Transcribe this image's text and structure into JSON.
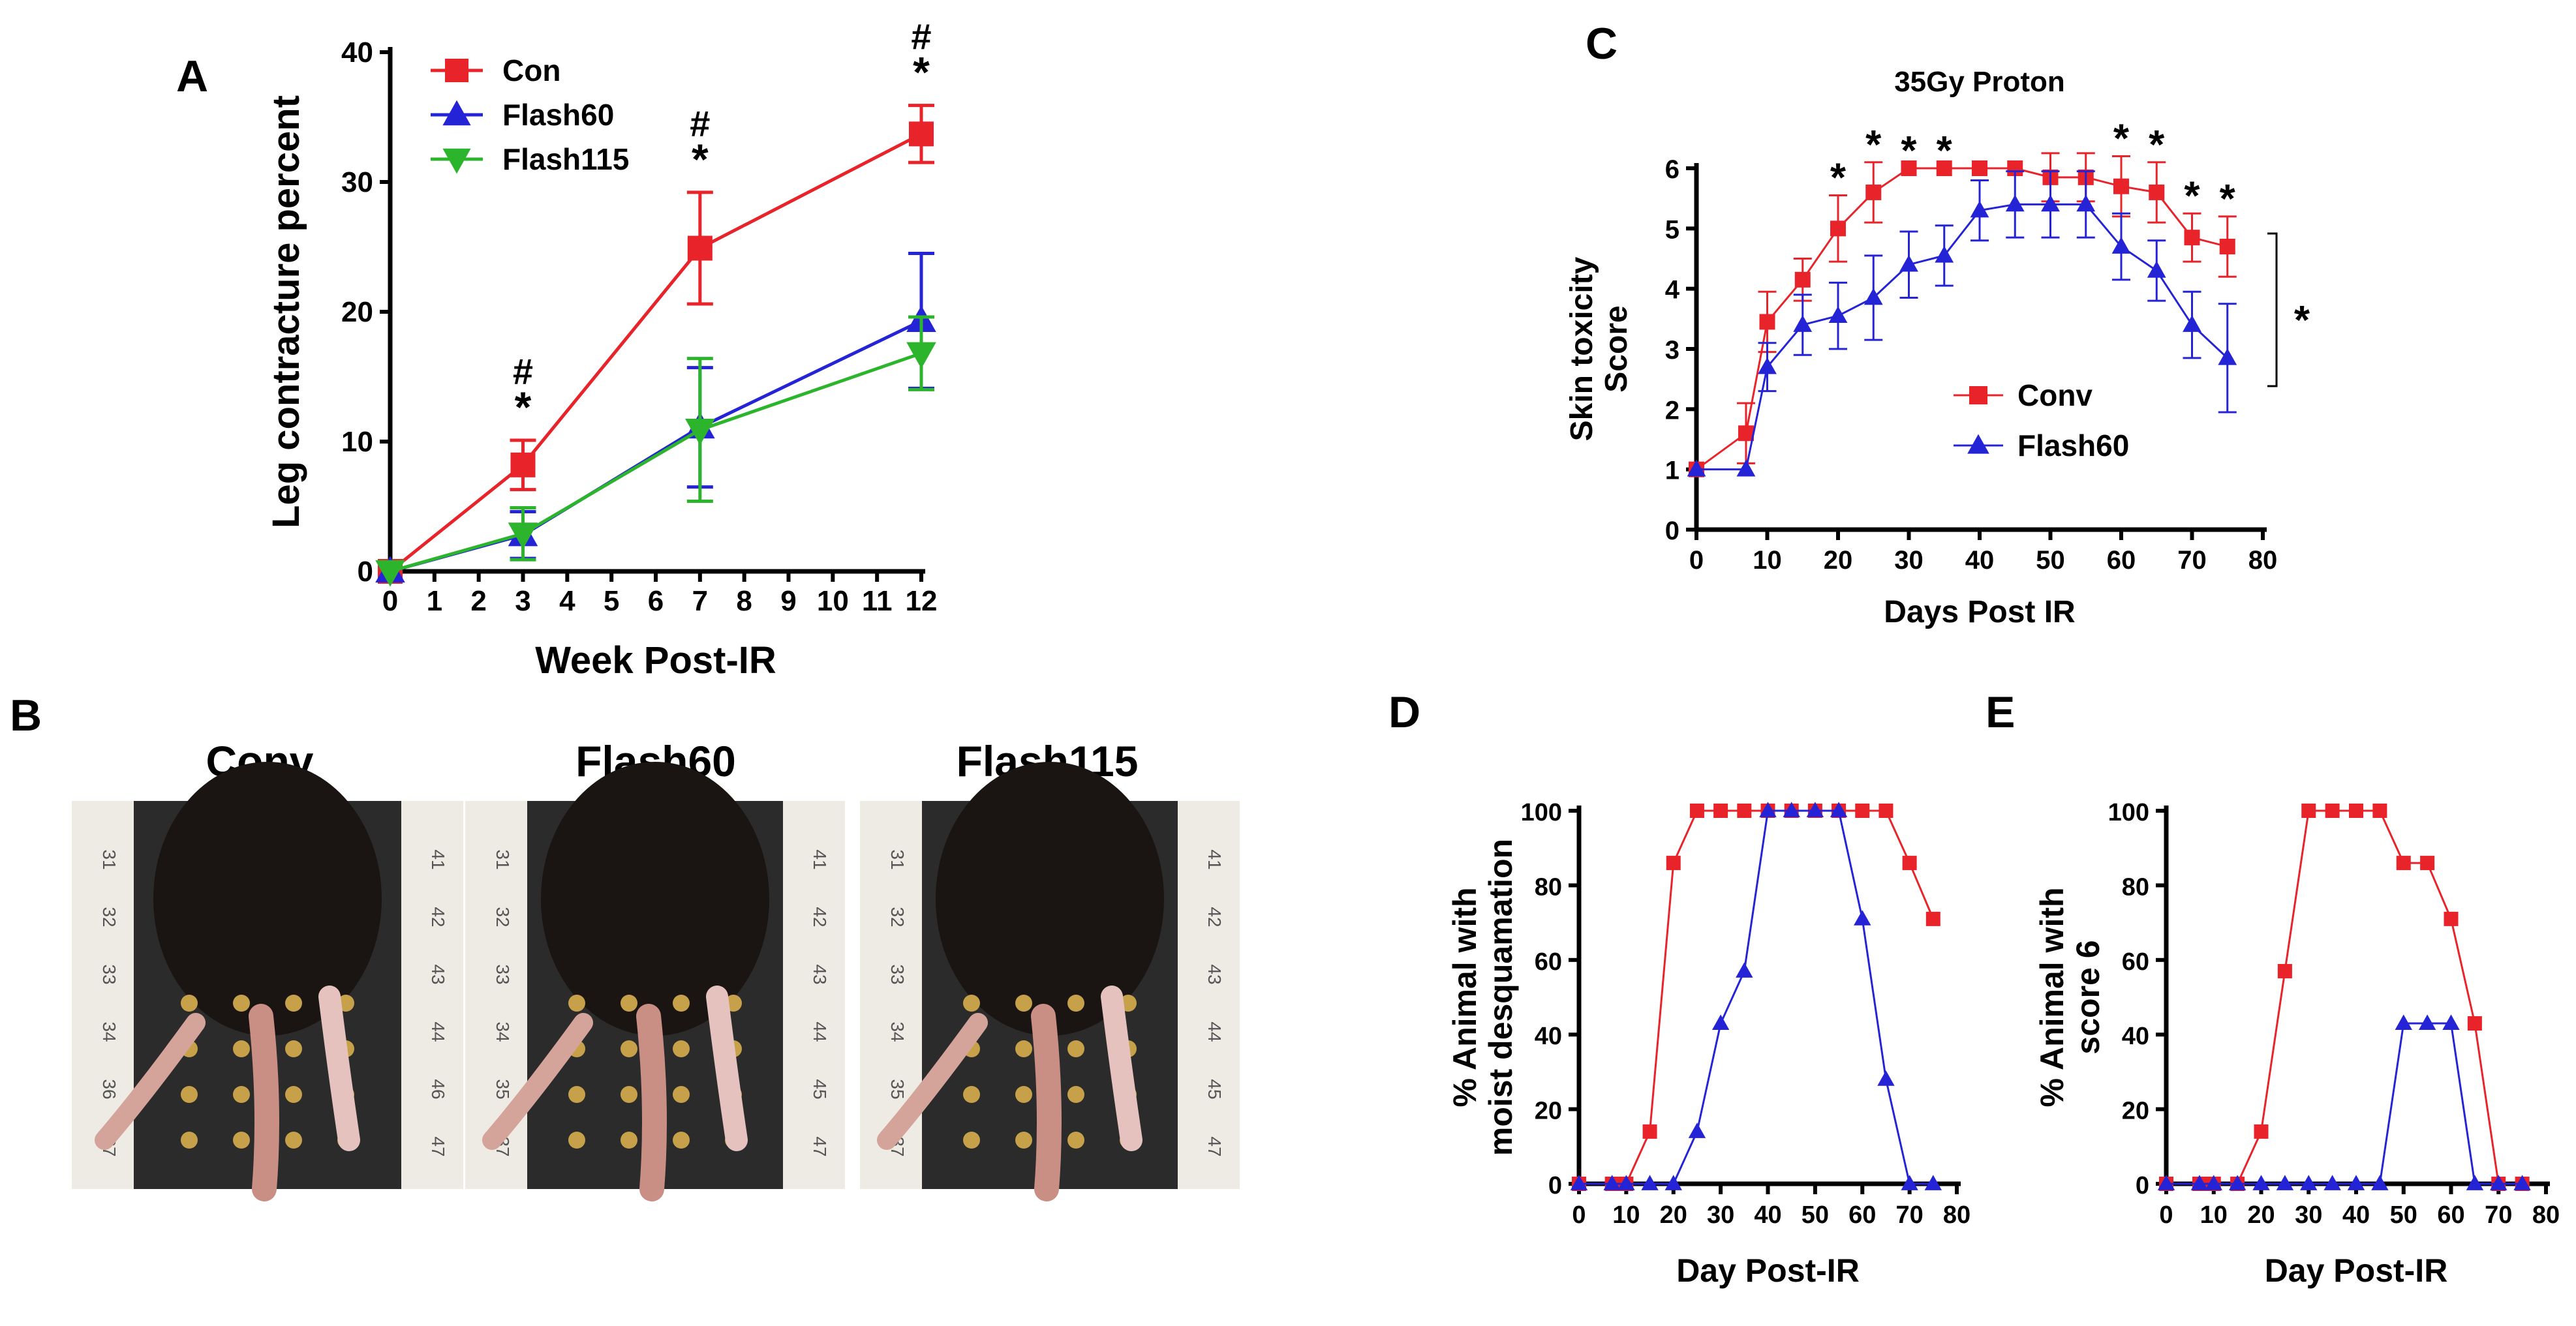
{
  "colors": {
    "conv": "#e8232a",
    "flash60": "#2424d6",
    "flash115": "#2cb52c",
    "axis": "#000000"
  },
  "chart_data": [
    {
      "panel": "A",
      "type": "line",
      "title": "",
      "xlabel": "Week Post-IR",
      "ylabel": "Leg contracture percent",
      "xlim": [
        0,
        12
      ],
      "ylim": [
        0,
        40
      ],
      "xticks": [
        "0",
        "1",
        "2",
        "3",
        "4",
        "5",
        "6",
        "7",
        "8",
        "9",
        "10",
        "11",
        "12"
      ],
      "yticks": [
        "0",
        "10",
        "20",
        "30",
        "40"
      ],
      "legend_position": "top-left",
      "series": [
        {
          "name": "Con",
          "marker": "square",
          "color": "#e8232a",
          "x": [
            0,
            3,
            7,
            12
          ],
          "y": [
            0,
            8.2,
            24.9,
            33.7
          ],
          "err": [
            0,
            1.9,
            4.3,
            2.2
          ]
        },
        {
          "name": "Flash60",
          "marker": "triangle-up",
          "color": "#2424d6",
          "x": [
            0,
            3,
            7,
            12
          ],
          "y": [
            0,
            2.8,
            11.1,
            19.3
          ],
          "err": [
            0,
            1.8,
            4.6,
            5.2
          ]
        },
        {
          "name": "Flash115",
          "marker": "triangle-down",
          "color": "#2cb52c",
          "x": [
            0,
            3,
            7,
            12
          ],
          "y": [
            0,
            2.9,
            10.9,
            16.8
          ],
          "err": [
            0,
            2.0,
            5.5,
            2.8
          ]
        }
      ],
      "annotations": [
        {
          "x": 3,
          "labels": [
            "#",
            "*"
          ]
        },
        {
          "x": 7,
          "labels": [
            "#",
            "*"
          ]
        },
        {
          "x": 12,
          "labels": [
            "#",
            "*"
          ]
        }
      ]
    },
    {
      "panel": "C",
      "type": "line",
      "title": "35Gy Proton",
      "xlabel": "Days Post IR",
      "ylabel": "Skin toxicity Score",
      "xlim": [
        0,
        80
      ],
      "ylim": [
        0,
        6
      ],
      "xticks": [
        "0",
        "10",
        "20",
        "30",
        "40",
        "50",
        "60",
        "70",
        "80"
      ],
      "yticks": [
        "0",
        "1",
        "2",
        "3",
        "4",
        "5",
        "6"
      ],
      "legend_position": "center-right",
      "series": [
        {
          "name": "Conv",
          "marker": "square",
          "color": "#e8232a",
          "x": [
            0,
            7,
            10,
            15,
            20,
            25,
            30,
            35,
            40,
            45,
            50,
            55,
            60,
            65,
            70,
            75
          ],
          "y": [
            1,
            1.6,
            3.45,
            4.15,
            5.0,
            5.6,
            6,
            6,
            6,
            6,
            5.85,
            5.85,
            5.7,
            5.6,
            4.85,
            4.7
          ],
          "err": [
            0,
            0.5,
            0.5,
            0.35,
            0.55,
            0.5,
            0,
            0,
            0,
            0,
            0.4,
            0.4,
            0.5,
            0.5,
            0.4,
            0.5
          ]
        },
        {
          "name": "Flash60",
          "marker": "triangle-up",
          "color": "#2424d6",
          "x": [
            0,
            7,
            10,
            15,
            20,
            25,
            30,
            35,
            40,
            45,
            50,
            55,
            60,
            65,
            70,
            75
          ],
          "y": [
            1,
            1,
            2.7,
            3.4,
            3.55,
            3.85,
            4.4,
            4.55,
            5.3,
            5.4,
            5.4,
            5.4,
            4.7,
            4.3,
            3.4,
            2.85
          ],
          "err": [
            0,
            0,
            0.4,
            0.5,
            0.55,
            0.7,
            0.55,
            0.5,
            0.5,
            0.55,
            0.55,
            0.55,
            0.55,
            0.5,
            0.55,
            0.9
          ]
        }
      ],
      "annotations": [
        {
          "x": 20,
          "labels": [
            "*"
          ]
        },
        {
          "x": 25,
          "labels": [
            "*"
          ]
        },
        {
          "x": 30,
          "labels": [
            "*"
          ]
        },
        {
          "x": 35,
          "labels": [
            "*"
          ]
        },
        {
          "x": 60,
          "labels": [
            "*"
          ]
        },
        {
          "x": 65,
          "labels": [
            "*"
          ]
        },
        {
          "x": 70,
          "labels": [
            "*"
          ]
        },
        {
          "x": 75,
          "labels": [
            "*"
          ]
        },
        {
          "bracket": "right",
          "labels": [
            "*"
          ]
        }
      ]
    },
    {
      "panel": "D",
      "type": "line",
      "title": "",
      "xlabel": "Day Post-IR",
      "ylabel": "% Animal with moist desquamation",
      "xlim": [
        0,
        80
      ],
      "ylim": [
        0,
        100
      ],
      "xticks": [
        "0",
        "10",
        "20",
        "30",
        "40",
        "50",
        "60",
        "70",
        "80"
      ],
      "yticks": [
        "0",
        "20",
        "40",
        "60",
        "80",
        "100"
      ],
      "series": [
        {
          "name": "Conv",
          "marker": "square",
          "color": "#e8232a",
          "x": [
            0,
            7,
            8,
            10,
            15,
            20,
            25,
            30,
            35,
            40,
            45,
            50,
            55,
            60,
            65,
            70,
            75
          ],
          "y": [
            0,
            0,
            0,
            0,
            14,
            86,
            100,
            100,
            100,
            100,
            100,
            100,
            100,
            100,
            100,
            86,
            71
          ]
        },
        {
          "name": "Flash60",
          "marker": "triangle-up",
          "color": "#2424d6",
          "x": [
            0,
            7,
            10,
            15,
            20,
            25,
            30,
            35,
            40,
            45,
            50,
            55,
            60,
            65,
            70,
            75
          ],
          "y": [
            0,
            0,
            0,
            0,
            0,
            14,
            43,
            57,
            100,
            100,
            100,
            100,
            71,
            28,
            0,
            0
          ]
        }
      ]
    },
    {
      "panel": "E",
      "type": "line",
      "title": "",
      "xlabel": "Day Post-IR",
      "ylabel": "% Animal with score 6",
      "xlim": [
        0,
        80
      ],
      "ylim": [
        0,
        100
      ],
      "xticks": [
        "0",
        "10",
        "20",
        "30",
        "40",
        "50",
        "60",
        "70",
        "80"
      ],
      "yticks": [
        "0",
        "20",
        "40",
        "60",
        "80",
        "100"
      ],
      "series": [
        {
          "name": "Conv",
          "marker": "square",
          "color": "#e8232a",
          "x": [
            0,
            7,
            8,
            10,
            15,
            20,
            25,
            30,
            35,
            40,
            45,
            50,
            55,
            60,
            65,
            70,
            75
          ],
          "y": [
            0,
            0,
            0,
            0,
            0,
            14,
            57,
            100,
            100,
            100,
            100,
            86,
            86,
            71,
            43,
            0,
            0
          ]
        },
        {
          "name": "Flash60",
          "marker": "triangle-up",
          "color": "#2424d6",
          "x": [
            0,
            7,
            10,
            15,
            20,
            25,
            30,
            35,
            40,
            45,
            50,
            55,
            60,
            65,
            70,
            75
          ],
          "y": [
            0,
            0,
            0,
            0,
            0,
            0,
            0,
            0,
            0,
            0,
            43,
            43,
            43,
            0,
            0,
            0
          ]
        }
      ]
    }
  ],
  "photos": {
    "panel": "B",
    "labels": [
      "Conv",
      "Flash60",
      "Flash115"
    ],
    "ruler_left": [
      "31",
      "32",
      "33",
      "34",
      "36",
      "37"
    ],
    "ruler_right_1": [
      "41",
      "42",
      "43",
      "44",
      "46",
      "47"
    ],
    "ruler_mid_left": [
      "31",
      "32",
      "33",
      "34",
      "35",
      "37"
    ],
    "ruler_right_2": [
      "41",
      "42",
      "43",
      "44",
      "45",
      "47"
    ],
    "ruler_mid_left_2": [
      "31",
      "32",
      "33",
      "34",
      "35",
      "37"
    ],
    "ruler_right_3": [
      "41",
      "42",
      "43",
      "44",
      "45",
      "47"
    ]
  }
}
